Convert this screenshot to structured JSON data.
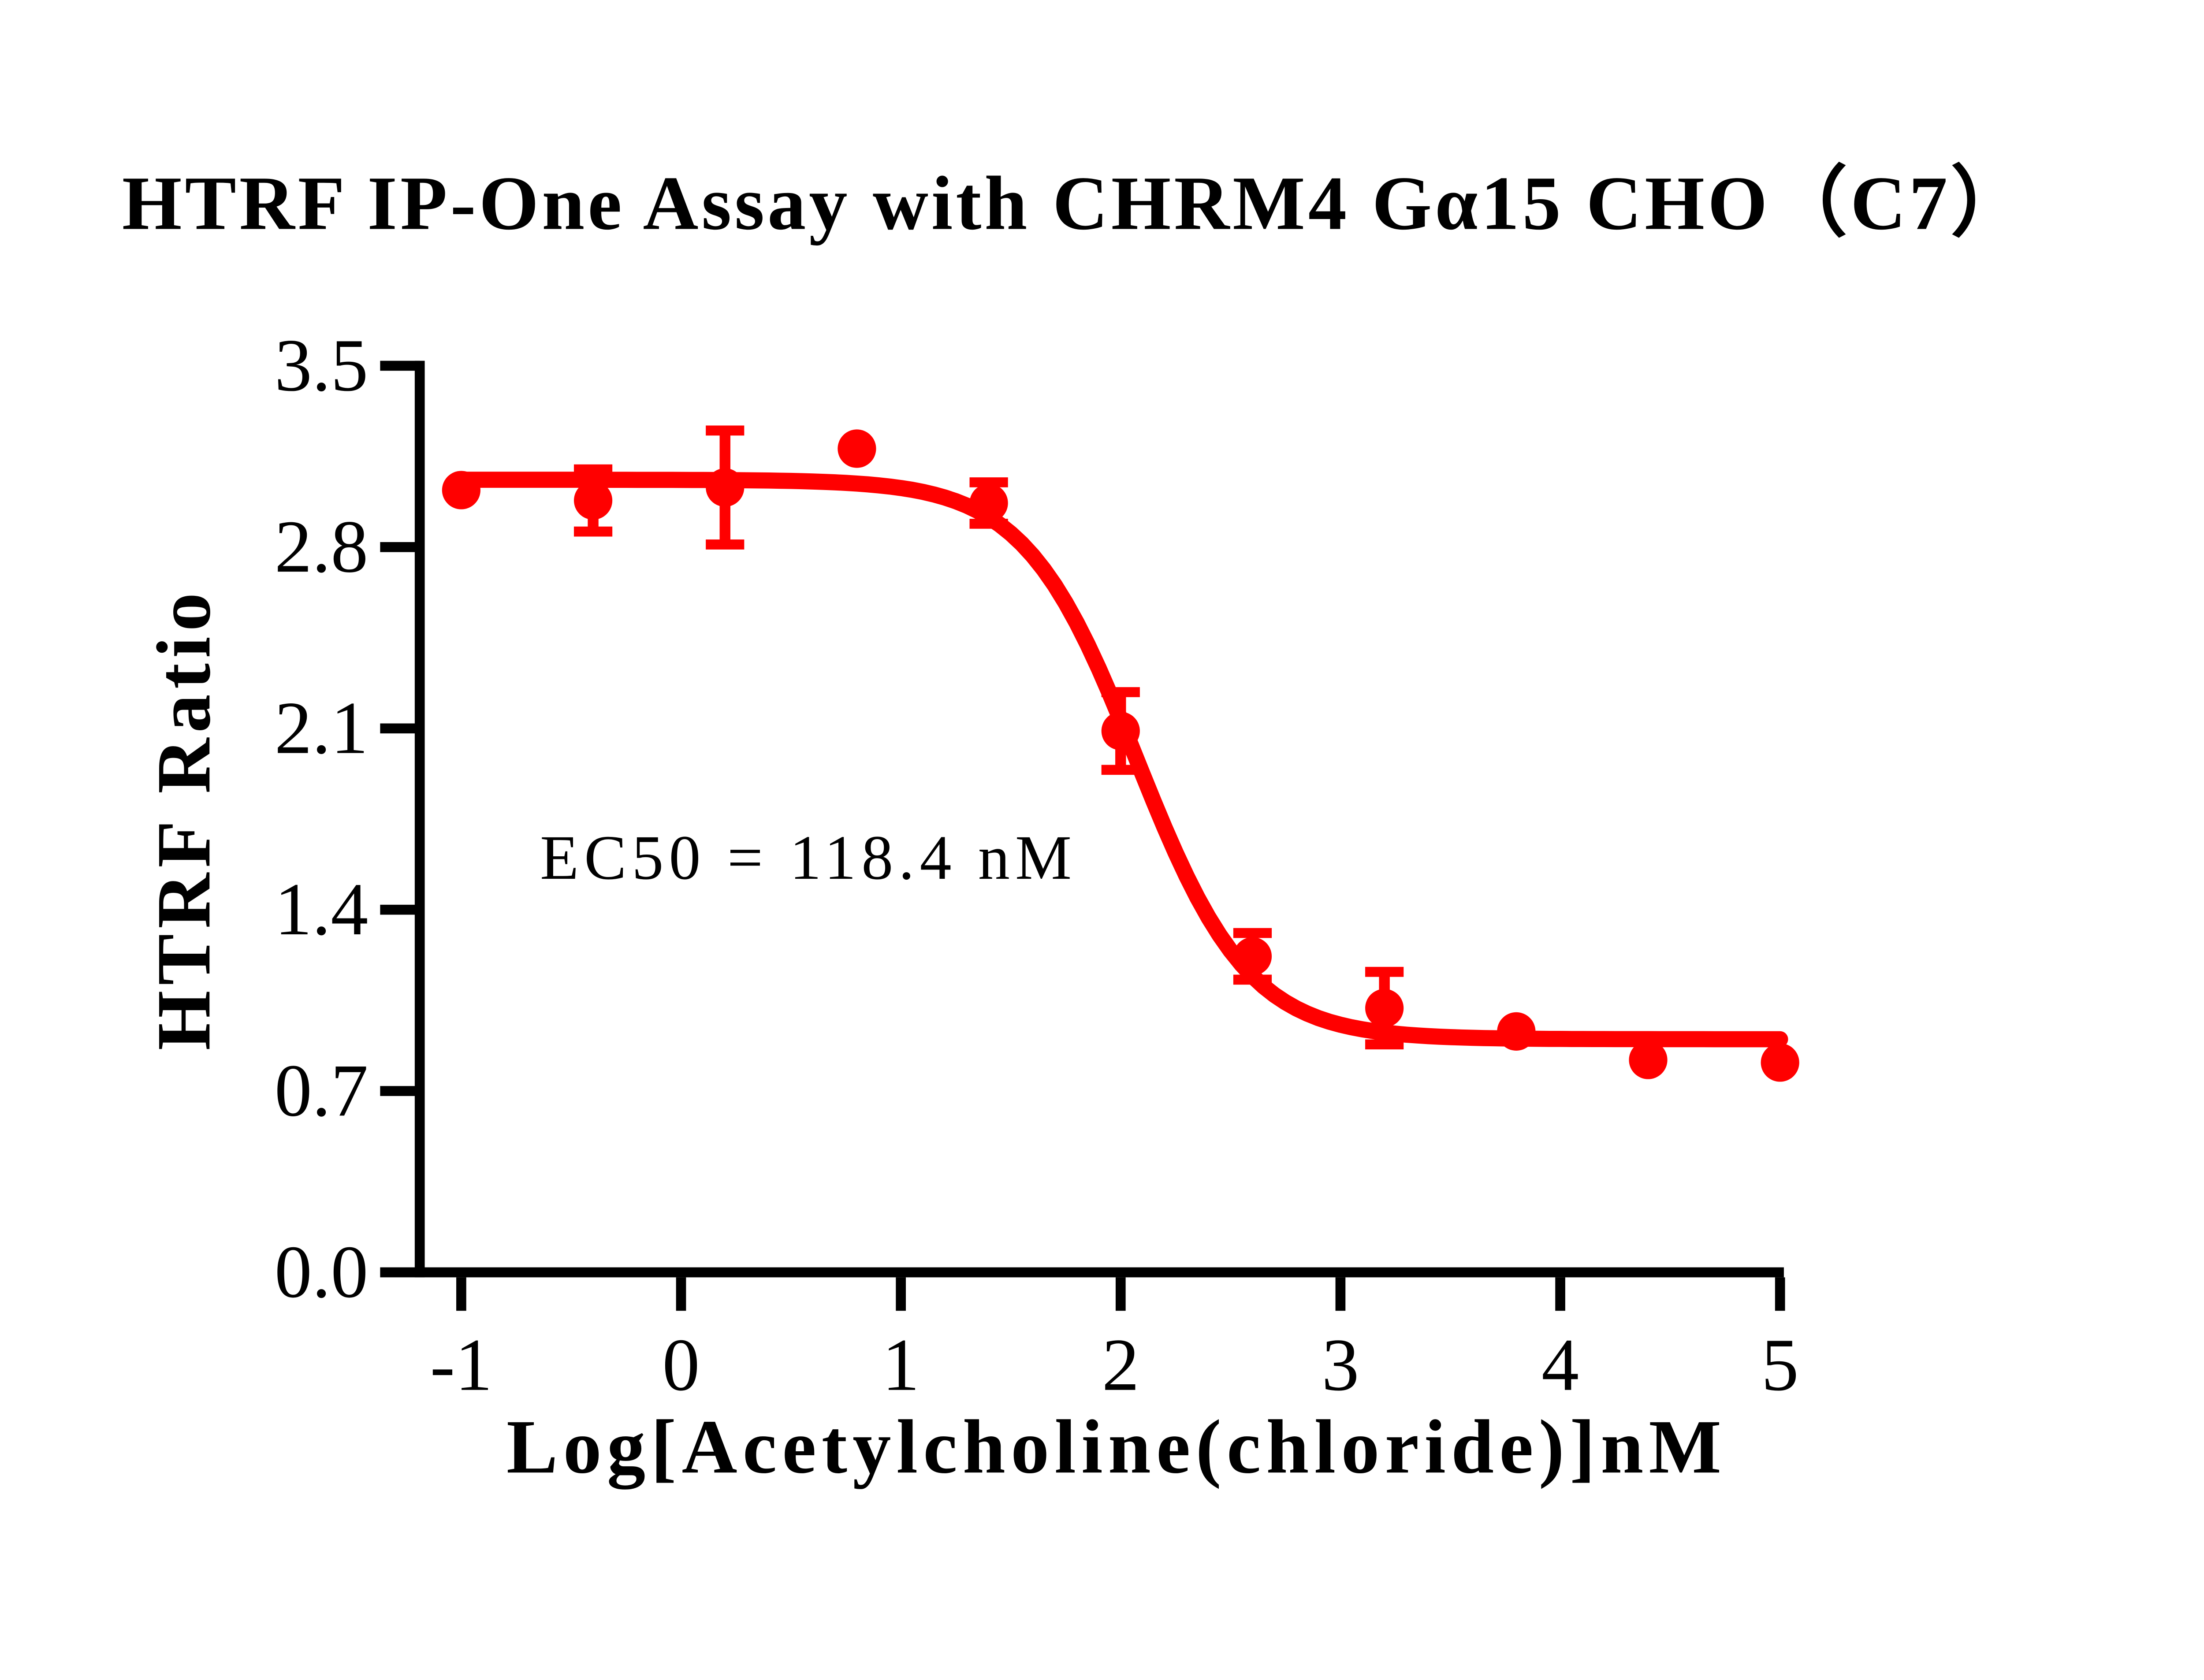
{
  "chart_data": {
    "type": "scatter",
    "title": "HTRF IP-One Assay with CHRM4 Gα15 CHO（C7）",
    "xlabel": "Log[Acetylcholine(chloride)]nM",
    "ylabel": "HTRF Ratio",
    "annotation": "EC50 = 118.4 nM",
    "ec50_nM": 118.4,
    "xlim": [
      -1,
      5
    ],
    "ylim": [
      0,
      3.5
    ],
    "grid": false,
    "legend": false,
    "colors": {
      "series": "#ff0000",
      "axis": "#000000",
      "background": "#ffffff"
    },
    "x_ticks": [
      {
        "value": -1,
        "label": "-1"
      },
      {
        "value": 0,
        "label": "0"
      },
      {
        "value": 1,
        "label": "1"
      },
      {
        "value": 2,
        "label": "2"
      },
      {
        "value": 3,
        "label": "3"
      },
      {
        "value": 4,
        "label": "4"
      },
      {
        "value": 5,
        "label": "5"
      }
    ],
    "y_ticks": [
      {
        "value": 0.0,
        "label": "0.0"
      },
      {
        "value": 0.7,
        "label": "0.7"
      },
      {
        "value": 1.4,
        "label": "1.4"
      },
      {
        "value": 2.1,
        "label": "2.1"
      },
      {
        "value": 2.8,
        "label": "2.8"
      },
      {
        "value": 3.5,
        "label": "3.5"
      }
    ],
    "points": [
      {
        "x": -1.0,
        "y": 3.02,
        "err": null
      },
      {
        "x": -0.4,
        "y": 2.98,
        "err": 0.12
      },
      {
        "x": 0.2,
        "y": 3.03,
        "err": 0.22
      },
      {
        "x": 0.8,
        "y": 3.18,
        "err": null
      },
      {
        "x": 1.4,
        "y": 2.97,
        "err": 0.08
      },
      {
        "x": 2.0,
        "y": 2.09,
        "err": 0.15
      },
      {
        "x": 2.6,
        "y": 1.22,
        "err": 0.09
      },
      {
        "x": 3.2,
        "y": 1.02,
        "err": 0.14
      },
      {
        "x": 3.8,
        "y": 0.93,
        "err": null
      },
      {
        "x": 4.4,
        "y": 0.82,
        "err": null
      },
      {
        "x": 5.0,
        "y": 0.81,
        "err": null
      }
    ],
    "fit_curve": {
      "model": "4PL",
      "top": 3.06,
      "bottom": 0.9,
      "logEC50": 2.073,
      "hill_slope": 1.7,
      "x_start": -1.0,
      "x_end": 5.0
    }
  }
}
